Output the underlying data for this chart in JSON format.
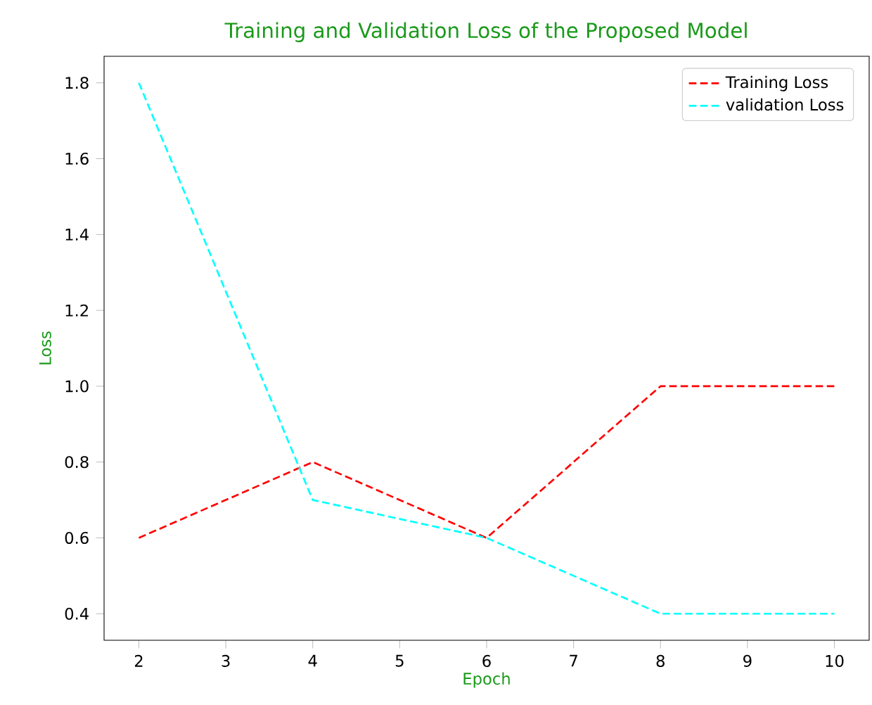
{
  "chart_data": {
    "type": "line",
    "title": "Training and Validation Loss of the Proposed Model",
    "xlabel": "Epoch",
    "ylabel": "Loss",
    "x": [
      2,
      4,
      6,
      8,
      10
    ],
    "series": [
      {
        "name": "Training Loss",
        "color": "#ff0000",
        "values": [
          0.6,
          0.8,
          0.6,
          1.0,
          1.0
        ]
      },
      {
        "name": "validation Loss",
        "color": "#00ffff",
        "values": [
          1.8,
          0.7,
          0.6,
          0.4,
          0.4
        ]
      }
    ],
    "xlim": [
      1.6,
      10.4
    ],
    "ylim": [
      0.33,
      1.87
    ],
    "xticks": [
      2,
      3,
      4,
      5,
      6,
      7,
      8,
      9,
      10
    ],
    "yticks": [
      0.4,
      0.6,
      0.8,
      {
        "value": 1.0,
        "label": "1.0"
      },
      1.2,
      1.4,
      1.6,
      1.8
    ],
    "legend": "top right",
    "line_style": "dashed",
    "marker": "none",
    "grid": false
  }
}
